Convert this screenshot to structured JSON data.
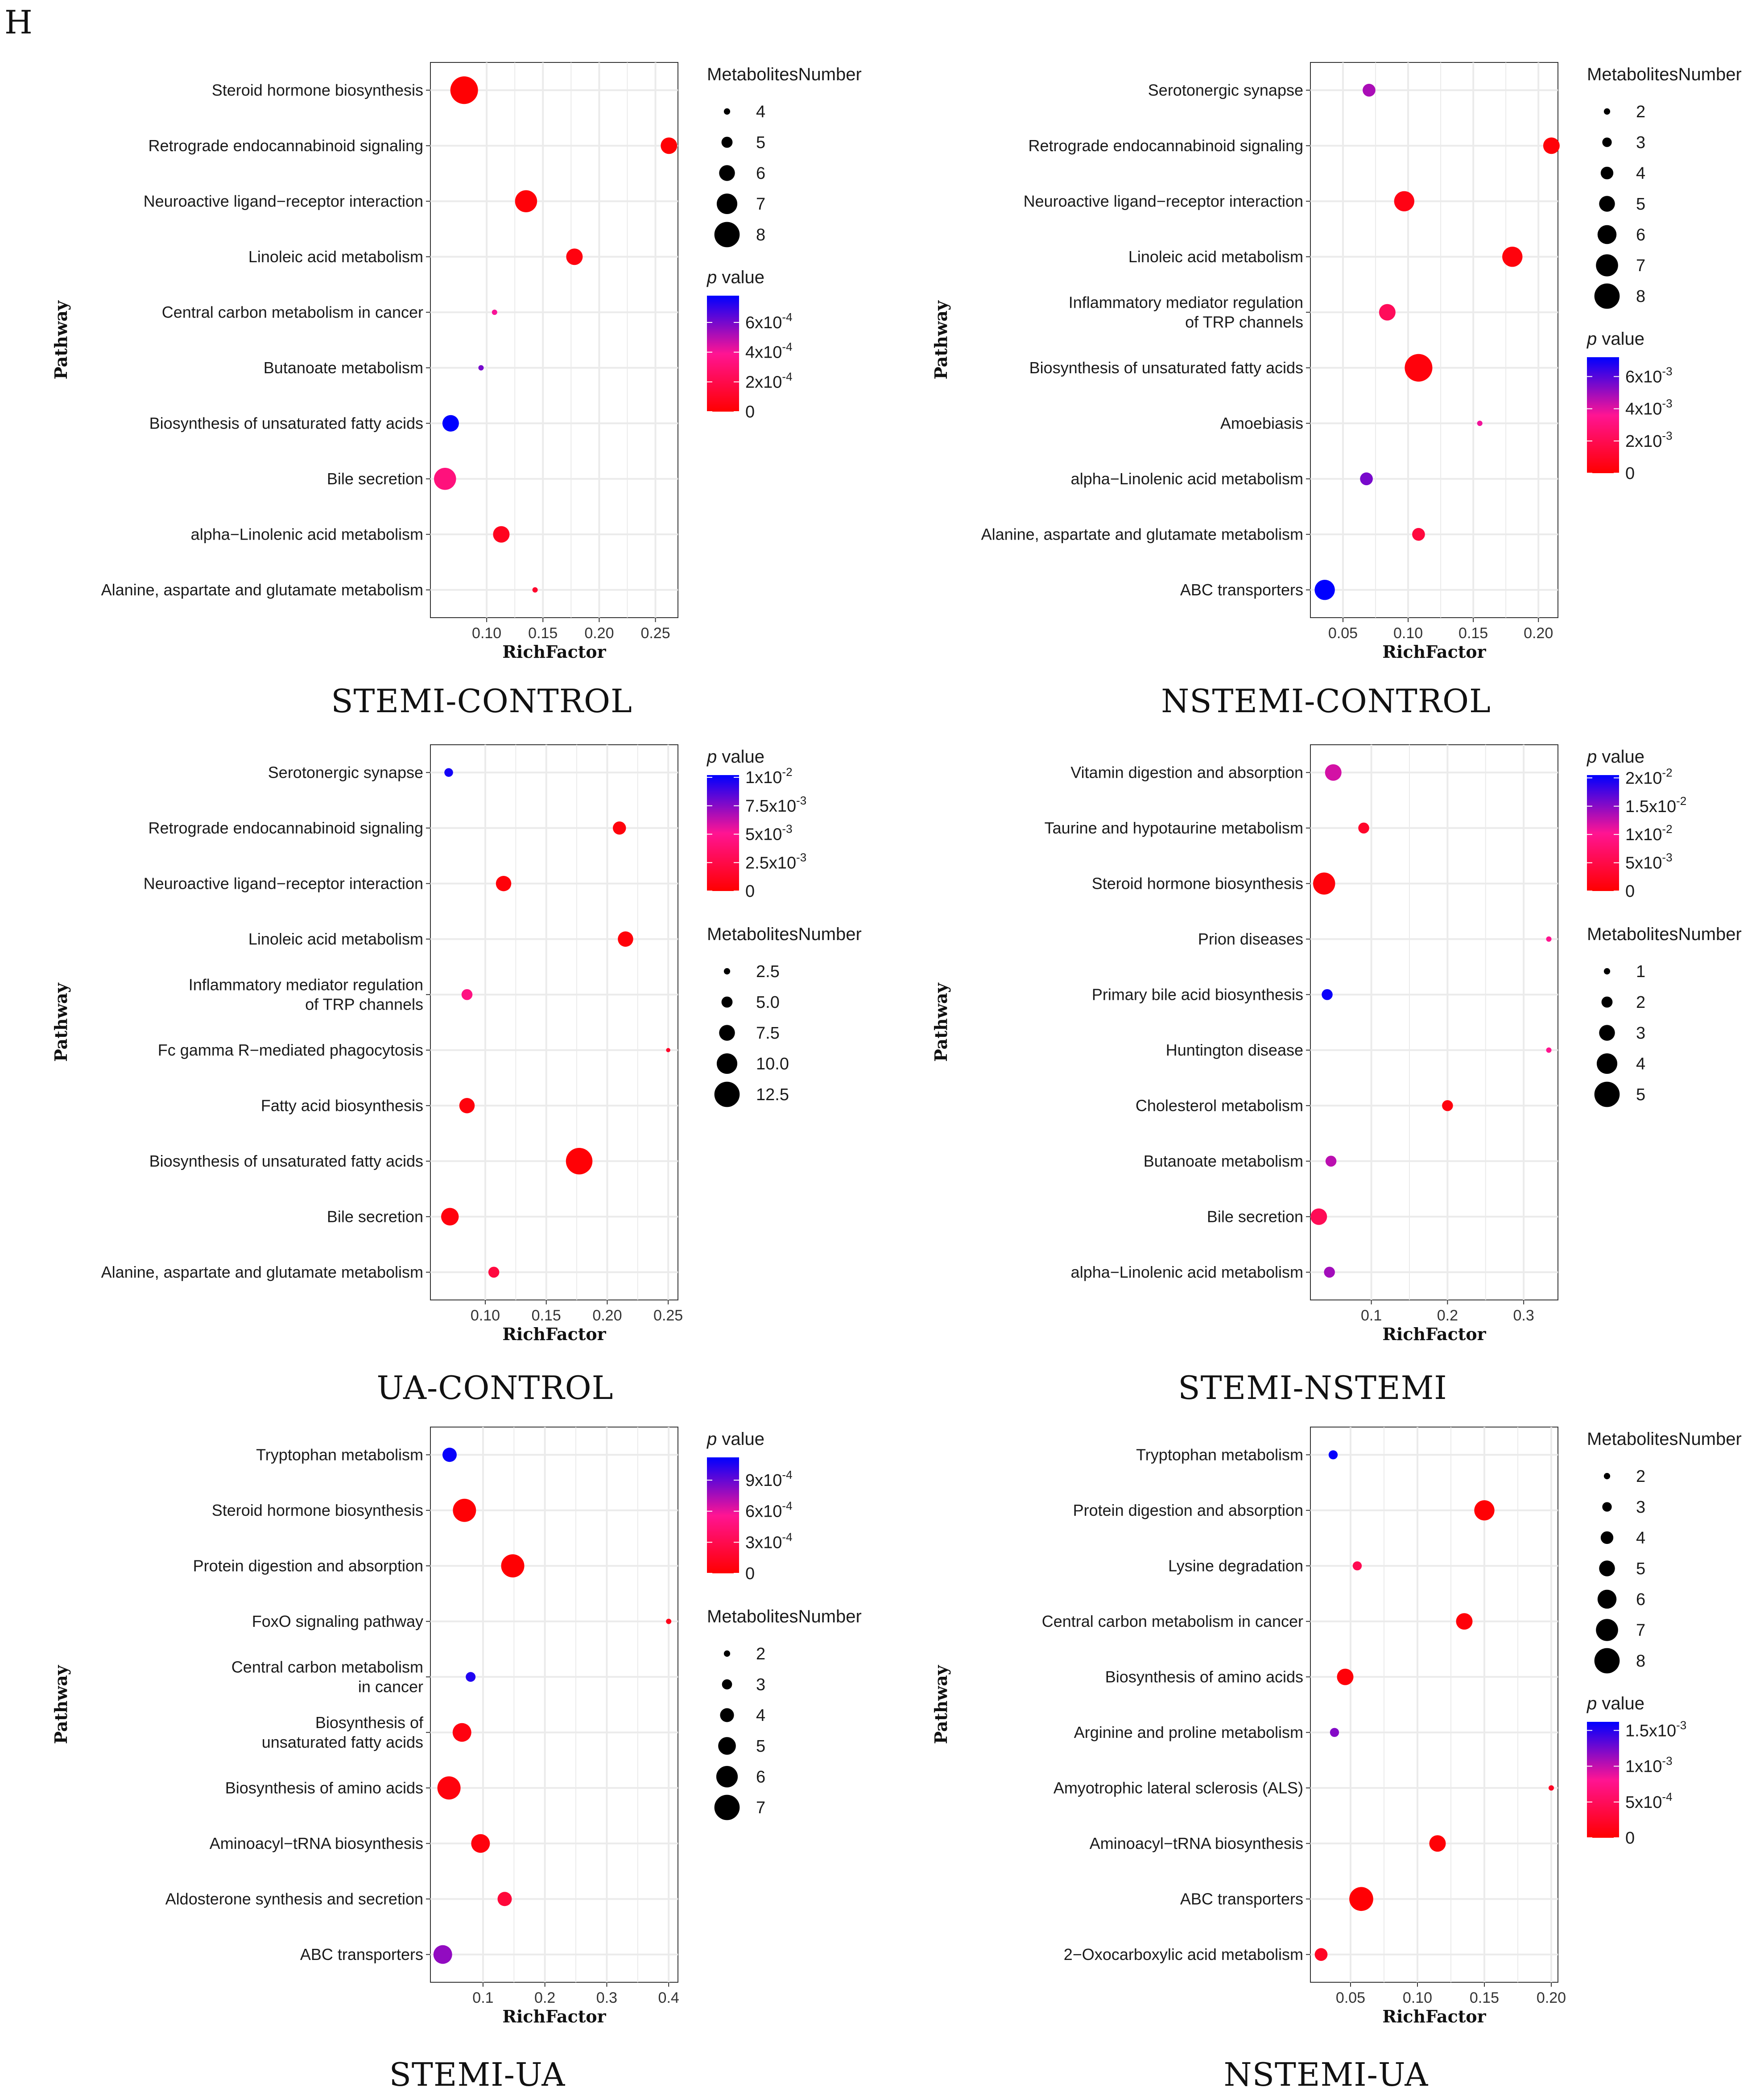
{
  "figure_letter": "H",
  "colors": {
    "low_p": "#ff0000",
    "mid_p": "#ff1493",
    "high_p": "#0000ff",
    "grid": "#ebebeb"
  },
  "chart_data": [
    {
      "type": "scatter",
      "caption": "STEMI-CONTROL",
      "xlabel": "RichFactor",
      "ylabel": "Pathway",
      "xlim": [
        0.05,
        0.27
      ],
      "xticks": [
        0.1,
        0.15,
        0.2,
        0.25
      ],
      "xtick_labels": [
        "0.10",
        "0.15",
        "0.20",
        "0.25"
      ],
      "legend_order": [
        "size",
        "color"
      ],
      "size_legend": {
        "title": "MetabolitesNumber",
        "values": [
          4,
          5,
          6,
          7,
          8
        ],
        "labels": [
          "4",
          "5",
          "6",
          "7",
          "8"
        ],
        "min": 4,
        "max": 8
      },
      "color_legend": {
        "title": "p value",
        "pmax": 0.00078,
        "ticks": [
          {
            "value": 0.0006,
            "base": "6x10",
            "exp": "-4"
          },
          {
            "value": 0.0004,
            "base": "4x10",
            "exp": "-4"
          },
          {
            "value": 0.0002,
            "base": "2x10",
            "exp": "-4"
          },
          {
            "value": 0,
            "base": "0",
            "exp": ""
          }
        ]
      },
      "pathways": [
        {
          "name": "Steroid hormone biosynthesis",
          "rich": 0.08,
          "number": 8,
          "p": 1e-05
        },
        {
          "name": "Retrograde endocannabinoid signaling",
          "rich": 0.262,
          "number": 6,
          "p": 1e-05
        },
        {
          "name": "Neuroactive ligand−receptor interaction",
          "rich": 0.135,
          "number": 7,
          "p": 2e-05
        },
        {
          "name": "Linoleic acid metabolism",
          "rich": 0.178,
          "number": 6,
          "p": 4e-05
        },
        {
          "name": "Central carbon metabolism in cancer",
          "rich": 0.107,
          "number": 4,
          "p": 0.0004
        },
        {
          "name": "Butanoate metabolism",
          "rich": 0.095,
          "number": 4,
          "p": 0.0006
        },
        {
          "name": "Biosynthesis of unsaturated fatty acids",
          "rich": 0.068,
          "number": 6,
          "p": 0.00078
        },
        {
          "name": "Bile secretion",
          "rich": 0.063,
          "number": 7,
          "p": 0.00033
        },
        {
          "name": "alpha−Linolenic acid metabolism",
          "rich": 0.113,
          "number": 6,
          "p": 8e-05
        },
        {
          "name": "Alanine, aspartate and glutamate metabolism",
          "rich": 0.143,
          "number": 4,
          "p": 0.00012
        }
      ]
    },
    {
      "type": "scatter",
      "caption": "NSTEMI-CONTROL",
      "xlabel": "RichFactor",
      "ylabel": "Pathway",
      "xlim": [
        0.025,
        0.215
      ],
      "xticks": [
        0.05,
        0.1,
        0.15,
        0.2
      ],
      "xtick_labels": [
        "0.05",
        "0.10",
        "0.15",
        "0.20"
      ],
      "legend_order": [
        "size",
        "color"
      ],
      "size_legend": {
        "title": "MetabolitesNumber",
        "values": [
          2,
          3,
          4,
          5,
          6,
          7,
          8
        ],
        "labels": [
          "2",
          "3",
          "4",
          "5",
          "6",
          "7",
          "8"
        ],
        "min": 2,
        "max": 8
      },
      "color_legend": {
        "title": "p value",
        "pmax": 0.0072,
        "ticks": [
          {
            "value": 0.006,
            "base": "6x10",
            "exp": "-3"
          },
          {
            "value": 0.004,
            "base": "4x10",
            "exp": "-3"
          },
          {
            "value": 0.002,
            "base": "2x10",
            "exp": "-3"
          },
          {
            "value": 0,
            "base": "0",
            "exp": ""
          }
        ]
      },
      "pathways": [
        {
          "name": "Serotonergic synapse",
          "rich": 0.07,
          "number": 4,
          "p": 0.0048
        },
        {
          "name": "Retrograde endocannabinoid signaling",
          "rich": 0.21,
          "number": 5,
          "p": 0.0002
        },
        {
          "name": "Neuroactive ligand−receptor interaction",
          "rich": 0.097,
          "number": 6,
          "p": 0.0005
        },
        {
          "name": "Linoleic acid metabolism",
          "rich": 0.18,
          "number": 6,
          "p": 0.0003
        },
        {
          "name": "Inflammatory mediator regulation\nof TRP channels",
          "rich": 0.084,
          "number": 5,
          "p": 0.0022
        },
        {
          "name": "Biosynthesis of unsaturated fatty acids",
          "rich": 0.108,
          "number": 8,
          "p": 0.0003
        },
        {
          "name": "Amoebiasis",
          "rich": 0.155,
          "number": 2,
          "p": 0.0038
        },
        {
          "name": "alpha−Linolenic acid metabolism",
          "rich": 0.068,
          "number": 4,
          "p": 0.0055
        },
        {
          "name": "Alanine, aspartate and glutamate metabolism",
          "rich": 0.108,
          "number": 4,
          "p": 0.0015
        },
        {
          "name": "ABC transporters",
          "rich": 0.036,
          "number": 6,
          "p": 0.0072
        }
      ]
    },
    {
      "type": "scatter",
      "caption": "UA-CONTROL",
      "xlabel": "RichFactor",
      "ylabel": "Pathway",
      "xlim": [
        0.055,
        0.258
      ],
      "xticks": [
        0.1,
        0.15,
        0.2,
        0.25
      ],
      "xtick_labels": [
        "0.10",
        "0.15",
        "0.20",
        "0.25"
      ],
      "legend_order": [
        "color",
        "size"
      ],
      "size_legend": {
        "title": "MetabolitesNumber",
        "values": [
          2.5,
          5.0,
          7.5,
          10.0,
          12.5
        ],
        "labels": [
          "2.5",
          "5.0",
          "7.5",
          "10.0",
          "12.5"
        ],
        "min": 2.5,
        "max": 12.5
      },
      "color_legend": {
        "title": "p value",
        "pmax": 0.0102,
        "ticks": [
          {
            "value": 0.01,
            "base": "1x10",
            "exp": "-2"
          },
          {
            "value": 0.0075,
            "base": "7.5x10",
            "exp": "-3"
          },
          {
            "value": 0.005,
            "base": "5x10",
            "exp": "-3"
          },
          {
            "value": 0.0025,
            "base": "2.5x10",
            "exp": "-3"
          },
          {
            "value": 0,
            "base": "0",
            "exp": ""
          }
        ]
      },
      "pathways": [
        {
          "name": "Serotonergic synapse",
          "rich": 0.07,
          "number": 4,
          "p": 0.0098
        },
        {
          "name": "Retrograde endocannabinoid signaling",
          "rich": 0.21,
          "number": 6,
          "p": 0.0004
        },
        {
          "name": "Neuroactive ligand−receptor interaction",
          "rich": 0.115,
          "number": 7,
          "p": 0.0003
        },
        {
          "name": "Linoleic acid metabolism",
          "rich": 0.215,
          "number": 7,
          "p": 0.0003
        },
        {
          "name": "Inflammatory mediator regulation\nof TRP channels",
          "rich": 0.085,
          "number": 5,
          "p": 0.0045
        },
        {
          "name": "Fc gamma R−mediated phagocytosis",
          "rich": 0.25,
          "number": 2,
          "p": 0.0015
        },
        {
          "name": "Fatty acid biosynthesis",
          "rich": 0.085,
          "number": 7,
          "p": 0.0004
        },
        {
          "name": "Biosynthesis of unsaturated fatty acids",
          "rich": 0.177,
          "number": 12,
          "p": 0.0002
        },
        {
          "name": "Bile secretion",
          "rich": 0.071,
          "number": 8,
          "p": 0.0005
        },
        {
          "name": "Alanine, aspartate and glutamate metabolism",
          "rich": 0.107,
          "number": 5,
          "p": 0.0022
        }
      ]
    },
    {
      "type": "scatter",
      "caption": "STEMI-NSTEMI",
      "xlabel": "RichFactor",
      "ylabel": "Pathway",
      "xlim": [
        0.02,
        0.345
      ],
      "xticks": [
        0.1,
        0.2,
        0.3
      ],
      "xtick_labels": [
        "0.1",
        "0.2",
        "0.3"
      ],
      "legend_order": [
        "color",
        "size"
      ],
      "size_legend": {
        "title": "MetabolitesNumber",
        "values": [
          1,
          2,
          3,
          4,
          5
        ],
        "labels": [
          "1",
          "2",
          "3",
          "4",
          "5"
        ],
        "min": 1,
        "max": 5
      },
      "color_legend": {
        "title": "p value",
        "pmax": 0.0205,
        "ticks": [
          {
            "value": 0.02,
            "base": "2x10",
            "exp": "-2"
          },
          {
            "value": 0.015,
            "base": "1.5x10",
            "exp": "-2"
          },
          {
            "value": 0.01,
            "base": "1x10",
            "exp": "-2"
          },
          {
            "value": 0.005,
            "base": "5x10",
            "exp": "-3"
          },
          {
            "value": 0,
            "base": "0",
            "exp": ""
          }
        ]
      },
      "pathways": [
        {
          "name": "Vitamin digestion and absorption",
          "rich": 0.05,
          "number": 3,
          "p": 0.012
        },
        {
          "name": "Taurine and hypotaurine metabolism",
          "rich": 0.09,
          "number": 2,
          "p": 0.003
        },
        {
          "name": "Steroid hormone biosynthesis",
          "rich": 0.038,
          "number": 4,
          "p": 0.0008
        },
        {
          "name": "Prion diseases",
          "rich": 0.333,
          "number": 1,
          "p": 0.01
        },
        {
          "name": "Primary bile acid biosynthesis",
          "rich": 0.042,
          "number": 2,
          "p": 0.02
        },
        {
          "name": "Huntington disease",
          "rich": 0.333,
          "number": 1,
          "p": 0.01
        },
        {
          "name": "Cholesterol metabolism",
          "rich": 0.2,
          "number": 2,
          "p": 0.001
        },
        {
          "name": "Butanoate metabolism",
          "rich": 0.047,
          "number": 2,
          "p": 0.013
        },
        {
          "name": "Bile secretion",
          "rich": 0.031,
          "number": 3,
          "p": 0.006
        },
        {
          "name": "alpha−Linolenic acid metabolism",
          "rich": 0.045,
          "number": 2,
          "p": 0.014
        }
      ]
    },
    {
      "type": "scatter",
      "caption": "STEMI-UA",
      "xlabel": "RichFactor",
      "ylabel": "Pathway",
      "xlim": [
        0.015,
        0.415
      ],
      "xticks": [
        0.1,
        0.2,
        0.3,
        0.4
      ],
      "xtick_labels": [
        "0.1",
        "0.2",
        "0.3",
        "0.4"
      ],
      "legend_order": [
        "color",
        "size"
      ],
      "size_legend": {
        "title": "MetabolitesNumber",
        "values": [
          2,
          3,
          4,
          5,
          6,
          7
        ],
        "labels": [
          "2",
          "3",
          "4",
          "5",
          "6",
          "7"
        ],
        "min": 2,
        "max": 7
      },
      "color_legend": {
        "title": "p value",
        "pmax": 0.00112,
        "ticks": [
          {
            "value": 0.0009,
            "base": "9x10",
            "exp": "-4"
          },
          {
            "value": 0.0006,
            "base": "6x10",
            "exp": "-4"
          },
          {
            "value": 0.0003,
            "base": "3x10",
            "exp": "-4"
          },
          {
            "value": 0,
            "base": "0",
            "exp": ""
          }
        ]
      },
      "pathways": [
        {
          "name": "Tryptophan metabolism",
          "rich": 0.046,
          "number": 4,
          "p": 0.0011
        },
        {
          "name": "Steroid hormone biosynthesis",
          "rich": 0.07,
          "number": 6,
          "p": 2e-05
        },
        {
          "name": "Protein digestion and absorption",
          "rich": 0.148,
          "number": 6,
          "p": 1e-05
        },
        {
          "name": "FoxO signaling pathway",
          "rich": 0.4,
          "number": 2,
          "p": 0.0001
        },
        {
          "name": "Central carbon metabolism\nin cancer",
          "rich": 0.08,
          "number": 3,
          "p": 0.00105
        },
        {
          "name": "Biosynthesis of\nunsaturated fatty acids",
          "rich": 0.066,
          "number": 5,
          "p": 6e-05
        },
        {
          "name": "Biosynthesis of amino acids",
          "rich": 0.045,
          "number": 6,
          "p": 5e-05
        },
        {
          "name": "Aminoacyl−tRNA biosynthesis",
          "rich": 0.096,
          "number": 5,
          "p": 5e-05
        },
        {
          "name": "Aldosterone synthesis and secretion",
          "rich": 0.135,
          "number": 4,
          "p": 0.00022
        },
        {
          "name": "ABC transporters",
          "rich": 0.035,
          "number": 5,
          "p": 0.0008
        }
      ]
    },
    {
      "type": "scatter",
      "caption": "NSTEMI-UA",
      "xlabel": "RichFactor",
      "ylabel": "Pathway",
      "xlim": [
        0.02,
        0.205
      ],
      "xticks": [
        0.05,
        0.1,
        0.15,
        0.2
      ],
      "xtick_labels": [
        "0.05",
        "0.10",
        "0.15",
        "0.20"
      ],
      "legend_order": [
        "size",
        "color"
      ],
      "size_legend": {
        "title": "MetabolitesNumber",
        "values": [
          2,
          3,
          4,
          5,
          6,
          7,
          8
        ],
        "labels": [
          "2",
          "3",
          "4",
          "5",
          "6",
          "7",
          "8"
        ],
        "min": 2,
        "max": 8
      },
      "color_legend": {
        "title": "p value",
        "pmax": 0.00162,
        "ticks": [
          {
            "value": 0.0015,
            "base": "1.5x10",
            "exp": "-3"
          },
          {
            "value": 0.001,
            "base": "1x10",
            "exp": "-3"
          },
          {
            "value": 0.0005,
            "base": "5x10",
            "exp": "-4"
          },
          {
            "value": 0,
            "base": "0",
            "exp": ""
          }
        ]
      },
      "pathways": [
        {
          "name": "Tryptophan metabolism",
          "rich": 0.037,
          "number": 3,
          "p": 0.0016
        },
        {
          "name": "Protein digestion and absorption",
          "rich": 0.15,
          "number": 6,
          "p": 3e-05
        },
        {
          "name": "Lysine degradation",
          "rich": 0.055,
          "number": 3,
          "p": 0.00045
        },
        {
          "name": "Central carbon metabolism in cancer",
          "rich": 0.135,
          "number": 5,
          "p": 5e-05
        },
        {
          "name": "Biosynthesis of amino acids",
          "rich": 0.046,
          "number": 5,
          "p": 5e-05
        },
        {
          "name": "Arginine and proline metabolism",
          "rich": 0.038,
          "number": 3,
          "p": 0.0012
        },
        {
          "name": "Amyotrophic lateral sclerosis (ALS)",
          "rich": 0.2,
          "number": 2,
          "p": 0.0002
        },
        {
          "name": "Aminoacyl−tRNA biosynthesis",
          "rich": 0.115,
          "number": 5,
          "p": 4e-05
        },
        {
          "name": "ABC transporters",
          "rich": 0.058,
          "number": 7,
          "p": 2e-05
        },
        {
          "name": "2−Oxocarboxylic acid metabolism",
          "rich": 0.028,
          "number": 4,
          "p": 0.0002
        }
      ]
    }
  ]
}
